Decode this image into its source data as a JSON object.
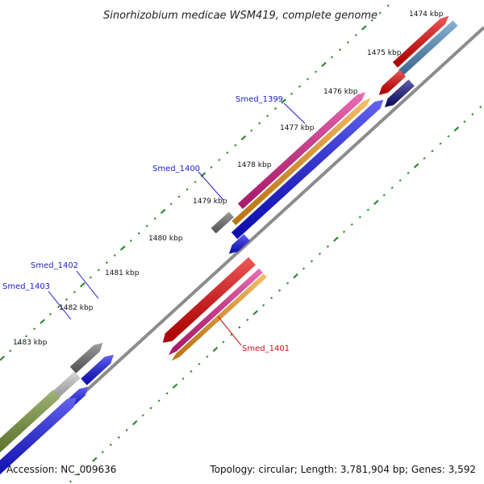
{
  "title": "Sinorhizobium medicae WSM419, complete genome",
  "footer": {
    "accession": "Accession: NC_009636",
    "summary": "Topology: circular; Length: 3,781,904 bp; Genes: 3,592"
  },
  "ticks": [
    "1474 kbp",
    "1475 kbp",
    "1476 kbp",
    "1477 kbp",
    "1478 kbp",
    "1479 kbp",
    "1480 kbp",
    "1481 kbp",
    "1482 kbp",
    "1483 kbp"
  ],
  "gene_labels": [
    {
      "name": "Smed_1399",
      "color": "#1c1cc8"
    },
    {
      "name": "Smed_1400",
      "color": "#1c1cc8"
    },
    {
      "name": "Smed_1401",
      "color": "#cc1111"
    },
    {
      "name": "Smed_1402",
      "color": "#1c1cc8"
    },
    {
      "name": "Smed_1403",
      "color": "#1c1cc8"
    }
  ],
  "colors": {
    "backbone": "#8c8c8c",
    "tick_green": "#2e8b2e",
    "cds_blue": "#1010e8",
    "cds_red": "#e60000",
    "gene_magenta": "#e0208c",
    "gene_orange": "#f59b1a",
    "gene_gray": "#6e6e6e",
    "gene_lightgray": "#c8c8c8",
    "gene_olive": "#6b8c2a",
    "gene_navy": "#101080",
    "gene_steelblue": "#4f8cc0"
  }
}
